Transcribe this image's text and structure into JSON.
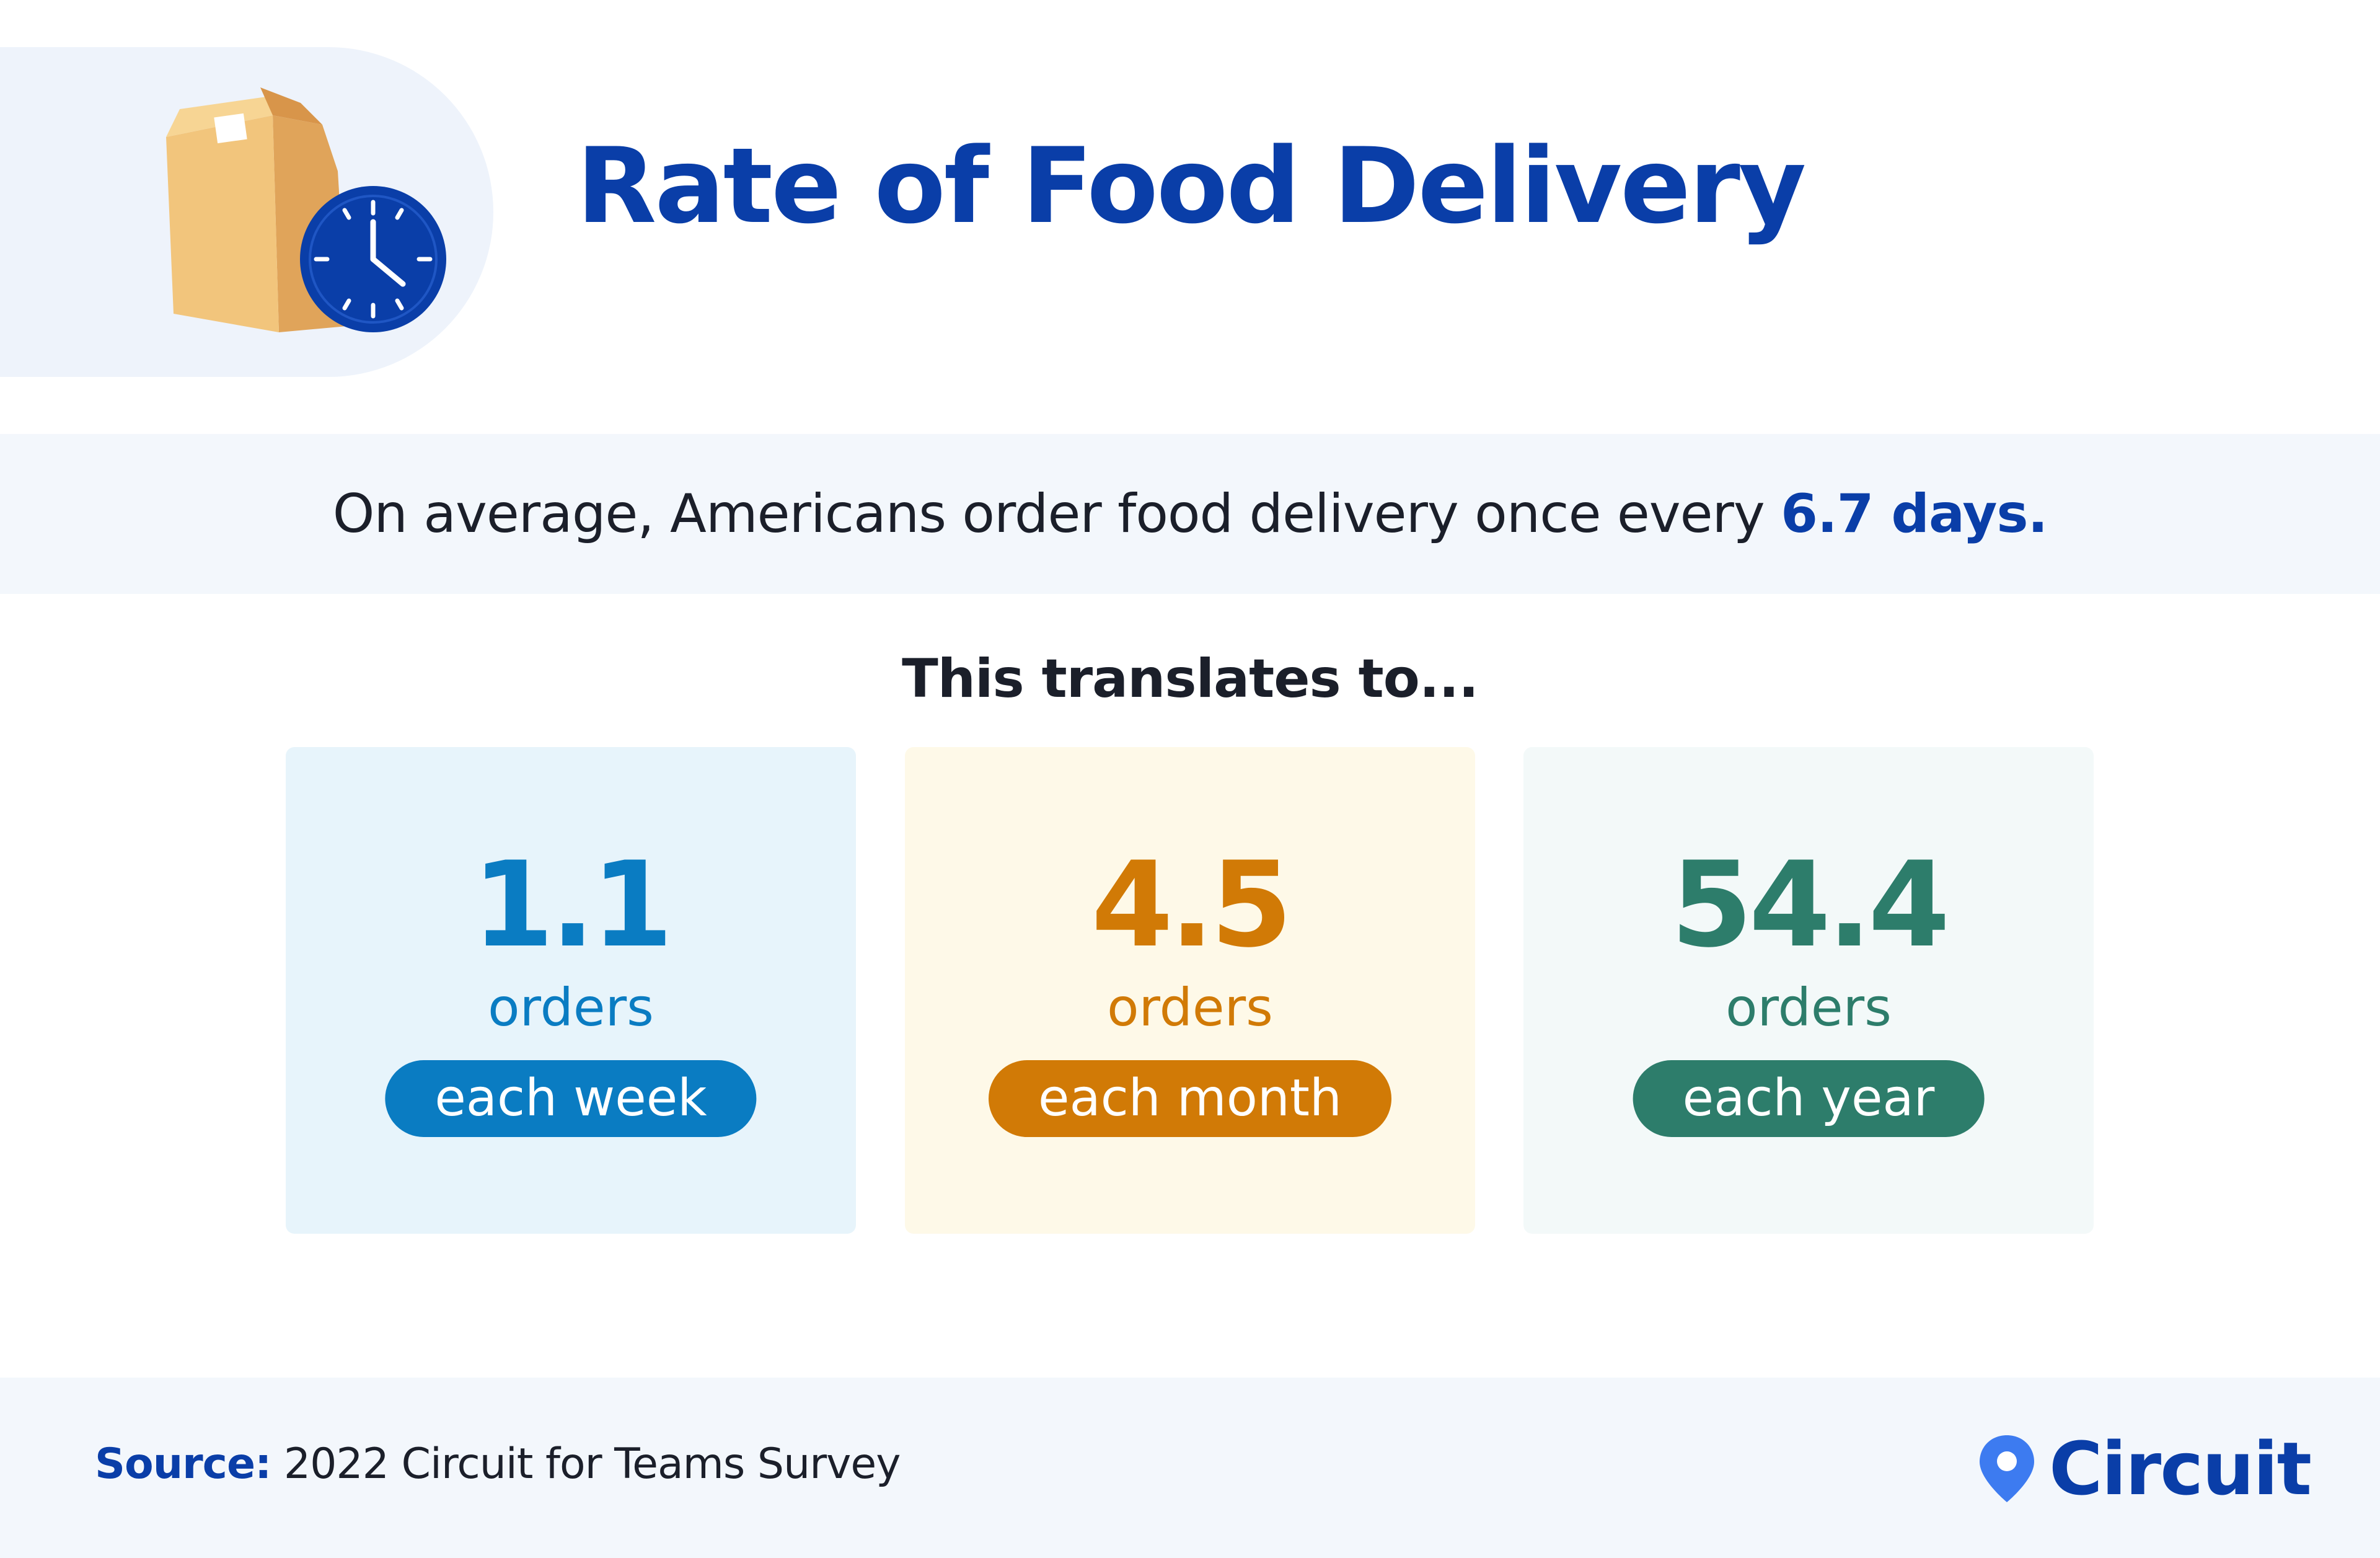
{
  "header": {
    "title": "Rate of Food Delivery",
    "icon": "food-bag-with-clock-icon"
  },
  "stat": {
    "prefix": "On average, Americans order food delivery once every ",
    "highlight": "6.7 days."
  },
  "subheading": "This translates to...",
  "cards": [
    {
      "value": "1.1",
      "unit": "orders",
      "period": "each week",
      "accent": "#0a7cc2",
      "background": "#e7f4fb"
    },
    {
      "value": "4.5",
      "unit": "orders",
      "period": "each month",
      "accent": "#d17a06",
      "background": "#fef9e8"
    },
    {
      "value": "54.4",
      "unit": "orders",
      "period": "each year",
      "accent": "#2d7d6b",
      "background": "#f3f9f9"
    }
  ],
  "footer": {
    "source_label": "Source:",
    "source_text": " 2022 Circuit for Teams Survey",
    "brand": "Circuit",
    "brand_icon": "map-pin-icon"
  },
  "colors": {
    "primary": "#0a3ea8",
    "text": "#1b1f2a",
    "band": "#f3f7fc"
  }
}
